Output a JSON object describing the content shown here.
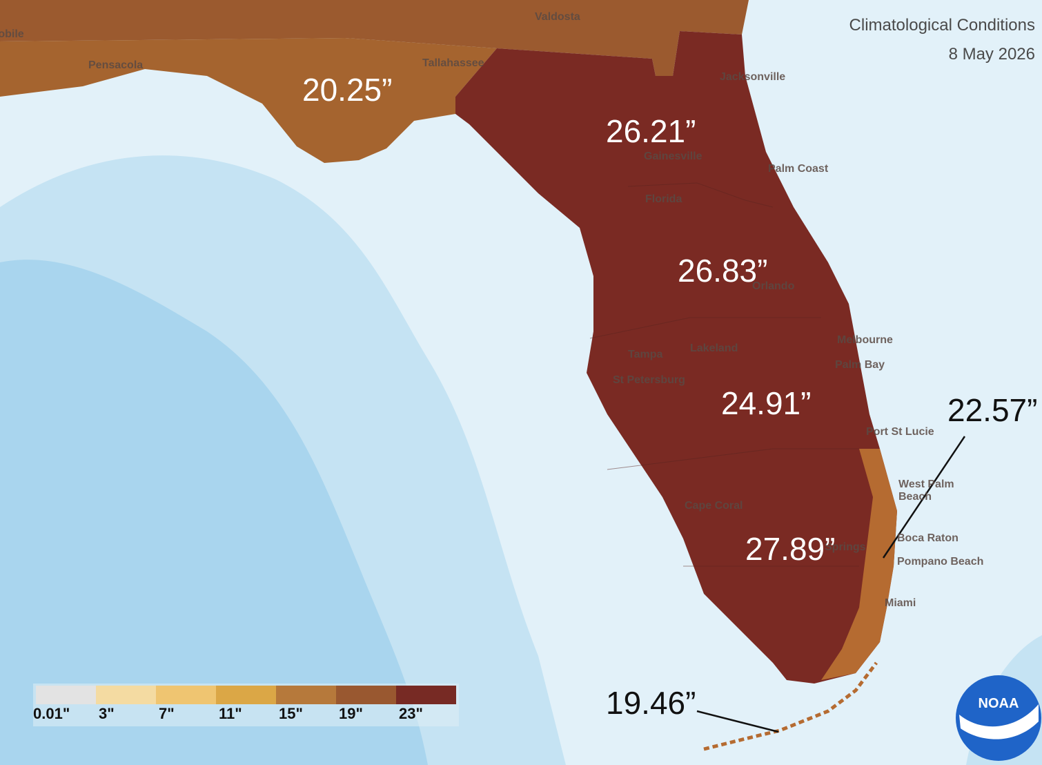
{
  "header": {
    "title": "Climatological Conditions",
    "date": "8 May 2026"
  },
  "region_labels": [
    "20.25”",
    "26.21”",
    "26.83”",
    "24.91”",
    "27.89”",
    "22.57”",
    "19.46”"
  ],
  "city_labels": [
    "Mobile",
    "Pensacola",
    "Tallahassee",
    "Valdosta",
    "Jacksonville",
    "Palm Coast",
    "Gainesville",
    "Florida",
    "Orlando",
    "Melbourne",
    "Palm Bay",
    "Lakeland",
    "Tampa",
    "St Petersburg",
    "Port St Lucie",
    "West Palm",
    "Beach",
    "Boca Raton",
    "Pompano Beach",
    "Miami",
    "Cape Coral",
    "Springs"
  ],
  "legend": {
    "items": [
      {
        "label": "0.01\"",
        "color": "#e3e3e3"
      },
      {
        "label": "3\"",
        "color": "#f4dba2"
      },
      {
        "label": "7\"",
        "color": "#efc571"
      },
      {
        "label": "11\"",
        "color": "#dba746"
      },
      {
        "label": "15\"",
        "color": "#b6793b"
      },
      {
        "label": "19\"",
        "color": "#995830"
      },
      {
        "label": "23\"",
        "color": "#772a24"
      }
    ]
  },
  "logo": {
    "text": "NOAA"
  }
}
